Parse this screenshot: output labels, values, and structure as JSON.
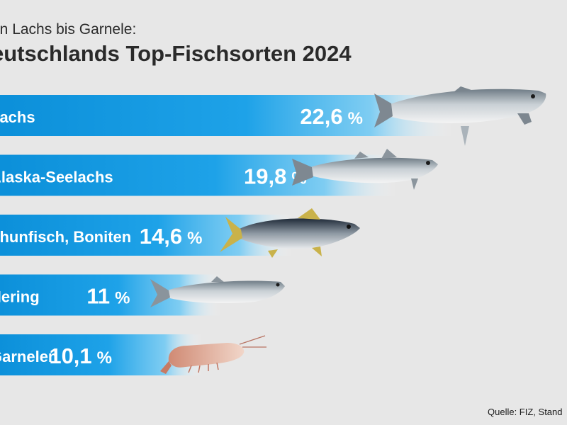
{
  "header": {
    "subtitle": "on Lachs bis Garnele:",
    "title": "eutschlands Top-Fischsorten 2024"
  },
  "chart_data": {
    "type": "bar",
    "orientation": "horizontal",
    "title": "eutschlands Top-Fischsorten 2024",
    "subtitle": "on Lachs bis Garnele:",
    "categories": [
      "Lachs",
      "Alaska-Seelachs",
      "Thunfisch, Boniten",
      "Hering",
      "Garnelen"
    ],
    "values": [
      22.6,
      19.8,
      14.6,
      11,
      10.1
    ],
    "value_labels": [
      "22,6",
      "19,8",
      "14,6",
      "11",
      "10,1"
    ],
    "unit": "%",
    "icons": [
      "salmon-icon",
      "pollock-icon",
      "tuna-icon",
      "herring-icon",
      "shrimp-icon"
    ],
    "colors": {
      "bar_start": "#0b8fd9",
      "bar_end": "#ffffff",
      "background": "#e7e7e7",
      "text": "#2a2a2a"
    },
    "grid": false,
    "legend": "none"
  },
  "footer": {
    "source": "Quelle:  FIZ, Stand"
  }
}
